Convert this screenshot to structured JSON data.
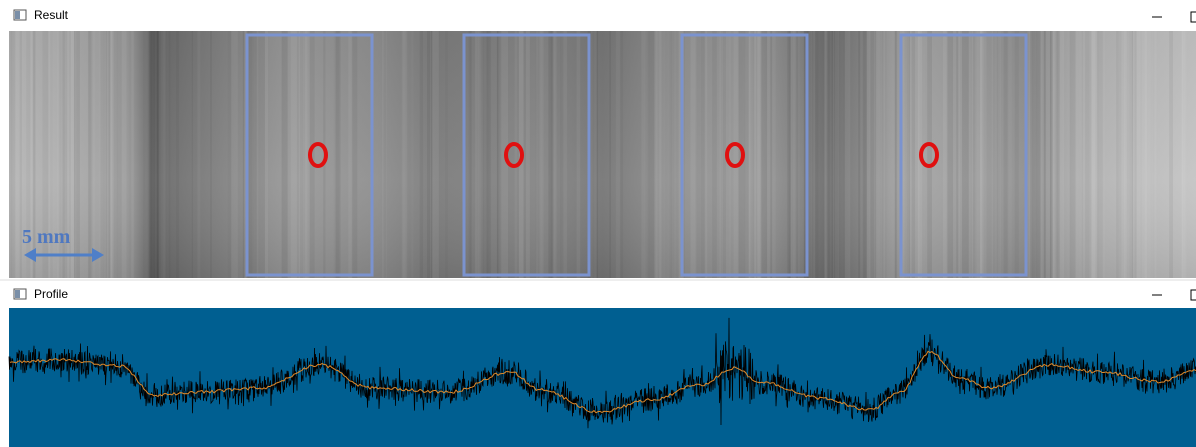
{
  "windows": [
    {
      "title": "Result",
      "scale_label": "5 mm"
    },
    {
      "title": "Profile"
    }
  ]
}
